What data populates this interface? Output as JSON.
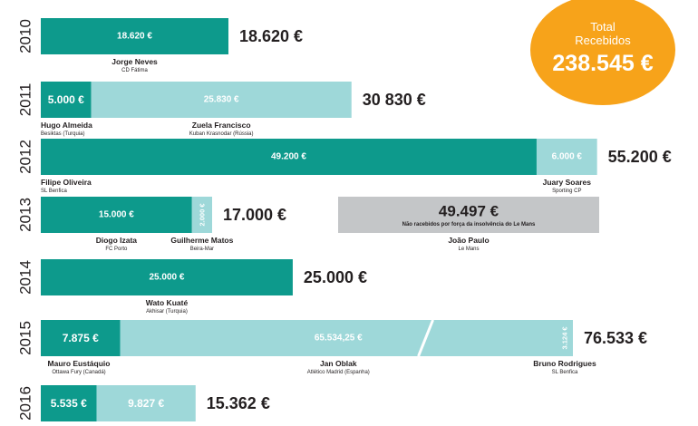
{
  "total": {
    "label_line1": "Total",
    "label_line2": "Recebidos",
    "value": "238.545 €",
    "color": "#f7a31a"
  },
  "colors": {
    "dark_teal": "#0d9a8c",
    "light_teal": "#9ed8d9",
    "gray": "#c4c6c8",
    "text": "#231f20"
  },
  "chart_data": {
    "type": "bar",
    "orientation": "horizontal-stacked",
    "unit": "€",
    "rows": [
      {
        "year": "2010",
        "total_label": "18.620 €",
        "segments": [
          {
            "value": 18620,
            "label": "18.620 €",
            "color": "dark",
            "player": "Jorge Neves",
            "club": "CD Fátima"
          }
        ]
      },
      {
        "year": "2011",
        "total_label": "30 830 €",
        "segments": [
          {
            "value": 5000,
            "label": "5.000 €",
            "color": "dark",
            "player": "Hugo Almeida",
            "club": "Besiktas (Turquia)"
          },
          {
            "value": 25830,
            "label": "25.830 €",
            "color": "light",
            "player": "Zuela Francisco",
            "club": "Kuban Krasnodar (Rússia)"
          }
        ]
      },
      {
        "year": "2012",
        "total_label": "55.200 €",
        "segments": [
          {
            "value": 49200,
            "label": "49.200 €",
            "color": "dark",
            "player": "Filipe Oliveira",
            "club": "SL Benfica"
          },
          {
            "value": 6000,
            "label": "6.000 €",
            "color": "light",
            "player": "Juary Soares",
            "club": "Sporting CP"
          }
        ]
      },
      {
        "year": "2013",
        "total_label": "17.000 €",
        "segments": [
          {
            "value": 15000,
            "label": "15.000 €",
            "color": "dark",
            "player": "Diogo Izata",
            "club": "FC Porto"
          },
          {
            "value": 2000,
            "label": "2.000 €",
            "color": "light",
            "player": "Guilherme Matos",
            "club": "Beira-Mar",
            "vertical": true
          }
        ],
        "unpaid": {
          "value": 49497,
          "label": "49.497 €",
          "note": "Não racebidos por força da insolvência do Le Mans",
          "player": "João Paulo",
          "club": "Le Mans"
        }
      },
      {
        "year": "2014",
        "total_label": "25.000 €",
        "segments": [
          {
            "value": 25000,
            "label": "25.000 €",
            "color": "dark",
            "player": "Wato Kuaté",
            "club": "Akhisar (Turquia)"
          }
        ]
      },
      {
        "year": "2015",
        "total_label": "76.533 €",
        "axis_break": true,
        "segments": [
          {
            "value": 7875,
            "label": "7.875 €",
            "color": "dark",
            "player": "Mauro Eustáquio",
            "club": "Ottawa Fury (Canadá)"
          },
          {
            "value": 65534.25,
            "label": "65.534,25 €",
            "color": "light",
            "player": "Jan Oblak",
            "club": "Atlético Madrid (Espanha)"
          },
          {
            "value": 3124,
            "label": "3.124 €",
            "color": "light",
            "player": "Bruno Rodrigues",
            "club": "SL Benfica",
            "vertical": true
          }
        ]
      },
      {
        "year": "2016",
        "total_label": "15.362 €",
        "segments": [
          {
            "value": 5535,
            "label": "5.535 €",
            "color": "dark"
          },
          {
            "value": 9827,
            "label": "9.827 €",
            "color": "light"
          }
        ]
      }
    ]
  }
}
